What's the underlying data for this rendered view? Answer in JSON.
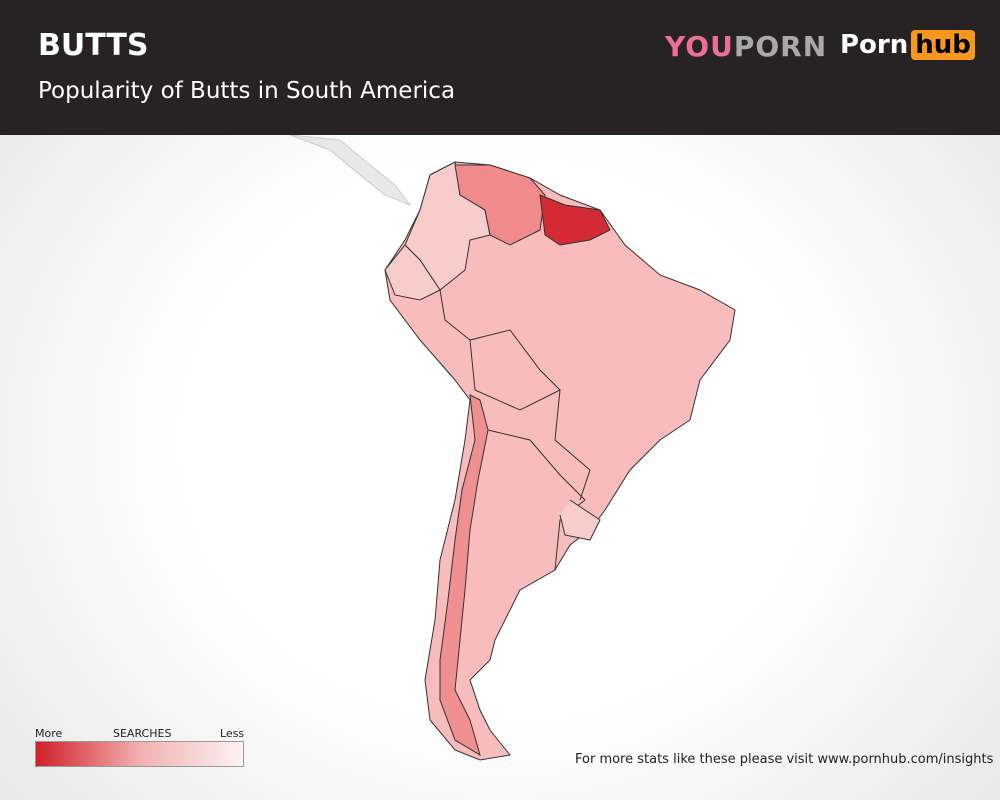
{
  "header": {
    "title": "BUTTS",
    "subtitle": "Popularity of Butts in South America",
    "logos": {
      "youporn": [
        "YOU",
        "PORN"
      ],
      "pornhub": [
        "Porn",
        "hub"
      ]
    }
  },
  "legend": {
    "more": "More",
    "title": "SEARCHES",
    "less": "Less"
  },
  "footer": "For more stats like these please visit www.pornhub.com/insights"
}
